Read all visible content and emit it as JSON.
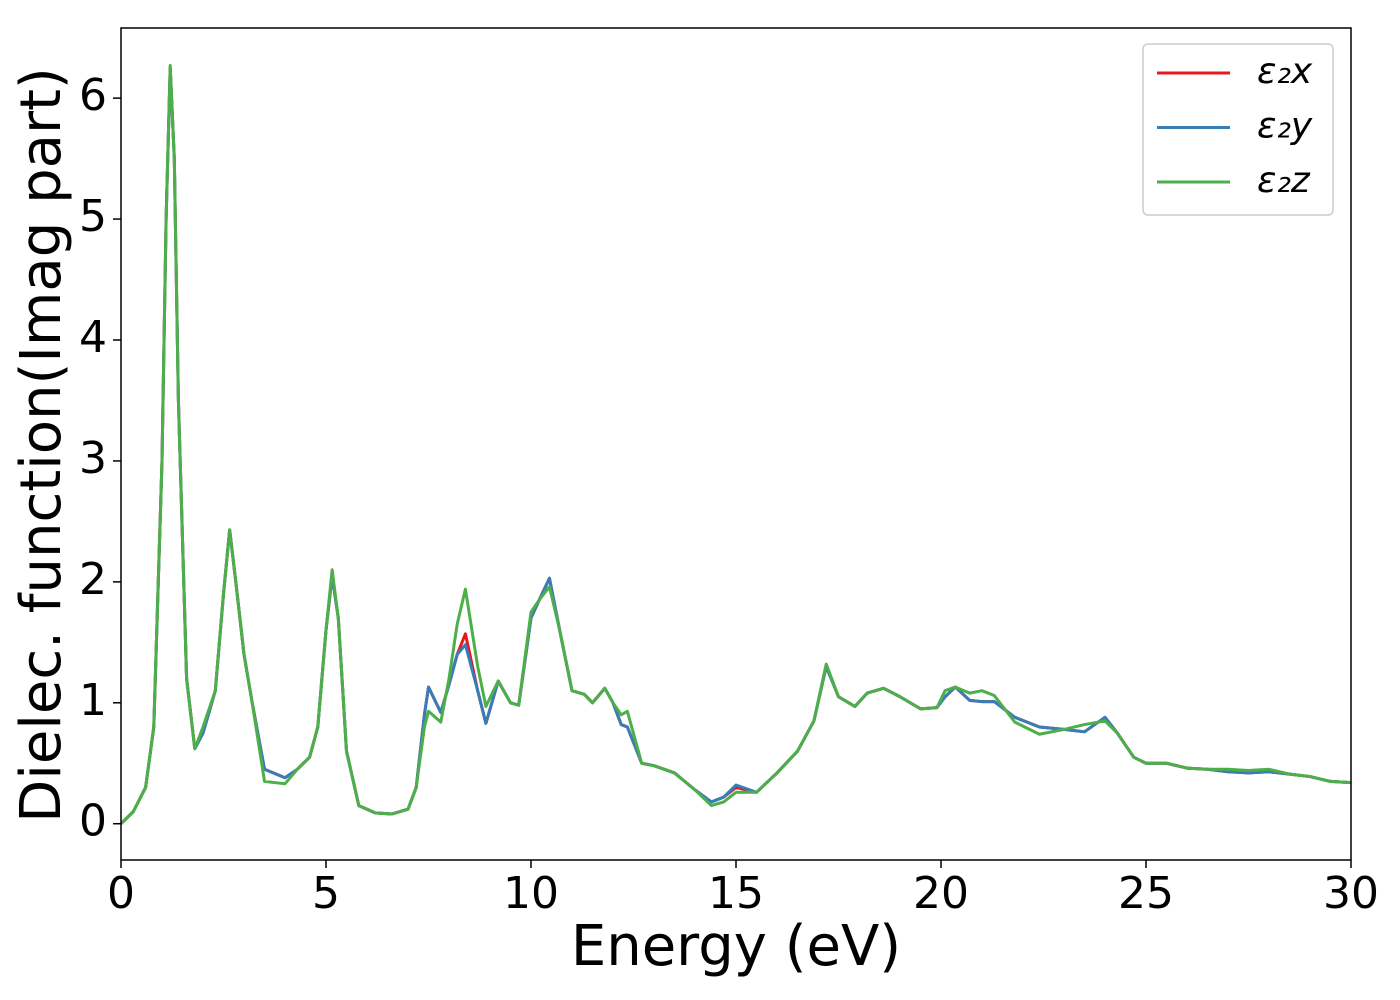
{
  "chart_data": {
    "type": "line",
    "xlabel": "Energy (eV)",
    "ylabel": "Dielec. function(Imag part)",
    "x": [
      0,
      0.3,
      0.6,
      0.8,
      1.0,
      1.1,
      1.2,
      1.3,
      1.4,
      1.6,
      1.8,
      2.0,
      2.3,
      2.5,
      2.65,
      2.8,
      3.0,
      3.2,
      3.5,
      4.0,
      4.3,
      4.6,
      4.8,
      5.0,
      5.15,
      5.3,
      5.5,
      5.8,
      6.2,
      6.6,
      7.0,
      7.2,
      7.4,
      7.5,
      7.8,
      8.0,
      8.2,
      8.4,
      8.7,
      8.9,
      9.2,
      9.5,
      9.7,
      10.0,
      10.2,
      10.45,
      10.7,
      11.0,
      11.3,
      11.5,
      11.8,
      12.0,
      12.2,
      12.35,
      12.7,
      13.0,
      13.5,
      14.0,
      14.4,
      14.7,
      15.0,
      15.5,
      16.0,
      16.5,
      16.9,
      17.2,
      17.5,
      17.9,
      18.2,
      18.6,
      19.0,
      19.5,
      19.9,
      20.1,
      20.35,
      20.7,
      21.0,
      21.3,
      21.8,
      22.4,
      23.0,
      23.5,
      24.0,
      24.3,
      24.7,
      25.0,
      25.5,
      26.0,
      26.5,
      27.0,
      27.5,
      28.0,
      28.5,
      29.0,
      29.5,
      30.0
    ],
    "series": [
      {
        "name": "ε₂x",
        "color": "#e41a1c",
        "values": [
          0,
          0.1,
          0.3,
          0.8,
          3.0,
          5.0,
          6.25,
          5.5,
          3.5,
          1.2,
          0.62,
          0.75,
          1.1,
          1.9,
          2.43,
          2.0,
          1.4,
          1.0,
          0.45,
          0.38,
          0.45,
          0.55,
          0.8,
          1.6,
          2.05,
          1.7,
          0.6,
          0.15,
          0.09,
          0.08,
          0.12,
          0.3,
          0.9,
          1.13,
          0.92,
          1.15,
          1.4,
          1.57,
          1.1,
          0.83,
          1.18,
          1.0,
          0.98,
          1.7,
          1.85,
          2.03,
          1.6,
          1.1,
          1.07,
          1.0,
          1.12,
          1.0,
          0.82,
          0.8,
          0.5,
          0.48,
          0.42,
          0.28,
          0.18,
          0.22,
          0.3,
          0.26,
          0.42,
          0.6,
          0.85,
          1.3,
          1.05,
          0.97,
          1.08,
          1.12,
          1.05,
          0.95,
          0.96,
          1.05,
          1.13,
          1.02,
          1.01,
          1.01,
          0.88,
          0.8,
          0.78,
          0.76,
          0.88,
          0.75,
          0.55,
          0.5,
          0.5,
          0.46,
          0.45,
          0.43,
          0.42,
          0.43,
          0.41,
          0.39,
          0.35,
          0.34
        ]
      },
      {
        "name": "ε₂y",
        "color": "#377eb8",
        "values": [
          0,
          0.1,
          0.3,
          0.8,
          3.0,
          5.0,
          6.25,
          5.5,
          3.5,
          1.2,
          0.62,
          0.75,
          1.1,
          1.9,
          2.43,
          2.0,
          1.4,
          1.0,
          0.45,
          0.38,
          0.45,
          0.55,
          0.8,
          1.6,
          2.05,
          1.7,
          0.6,
          0.15,
          0.09,
          0.08,
          0.12,
          0.3,
          0.9,
          1.13,
          0.92,
          1.15,
          1.4,
          1.48,
          1.1,
          0.83,
          1.18,
          1.0,
          0.98,
          1.7,
          1.85,
          2.03,
          1.6,
          1.1,
          1.07,
          1.0,
          1.12,
          1.0,
          0.82,
          0.8,
          0.5,
          0.48,
          0.42,
          0.28,
          0.18,
          0.22,
          0.32,
          0.26,
          0.42,
          0.6,
          0.85,
          1.3,
          1.05,
          0.97,
          1.08,
          1.12,
          1.05,
          0.95,
          0.96,
          1.05,
          1.13,
          1.02,
          1.01,
          1.01,
          0.88,
          0.8,
          0.78,
          0.76,
          0.88,
          0.75,
          0.55,
          0.5,
          0.5,
          0.46,
          0.45,
          0.43,
          0.42,
          0.43,
          0.41,
          0.39,
          0.35,
          0.34
        ]
      },
      {
        "name": "ε₂z",
        "color": "#4daf4a",
        "values": [
          0,
          0.1,
          0.3,
          0.8,
          3.0,
          5.0,
          6.27,
          5.5,
          3.5,
          1.2,
          0.62,
          0.8,
          1.1,
          1.9,
          2.43,
          2.0,
          1.4,
          1.0,
          0.35,
          0.33,
          0.45,
          0.55,
          0.8,
          1.6,
          2.1,
          1.7,
          0.6,
          0.15,
          0.09,
          0.08,
          0.12,
          0.3,
          0.8,
          0.93,
          0.84,
          1.2,
          1.65,
          1.94,
          1.3,
          0.97,
          1.18,
          1.0,
          0.98,
          1.75,
          1.85,
          1.96,
          1.6,
          1.1,
          1.07,
          1.0,
          1.12,
          1.0,
          0.9,
          0.93,
          0.5,
          0.48,
          0.42,
          0.28,
          0.15,
          0.18,
          0.26,
          0.26,
          0.42,
          0.6,
          0.85,
          1.32,
          1.05,
          0.97,
          1.08,
          1.12,
          1.05,
          0.95,
          0.96,
          1.1,
          1.13,
          1.08,
          1.1,
          1.06,
          0.84,
          0.74,
          0.78,
          0.82,
          0.85,
          0.75,
          0.55,
          0.5,
          0.5,
          0.46,
          0.45,
          0.45,
          0.44,
          0.45,
          0.41,
          0.39,
          0.35,
          0.34
        ]
      }
    ],
    "xlim": [
      0,
      30
    ],
    "xticks": [
      0,
      5,
      10,
      15,
      20,
      25,
      30
    ],
    "ylim": [
      -0.3,
      6.58
    ],
    "yticks": [
      0,
      1,
      2,
      3,
      4,
      5,
      6
    ],
    "grid": false,
    "legend": "upper right"
  }
}
